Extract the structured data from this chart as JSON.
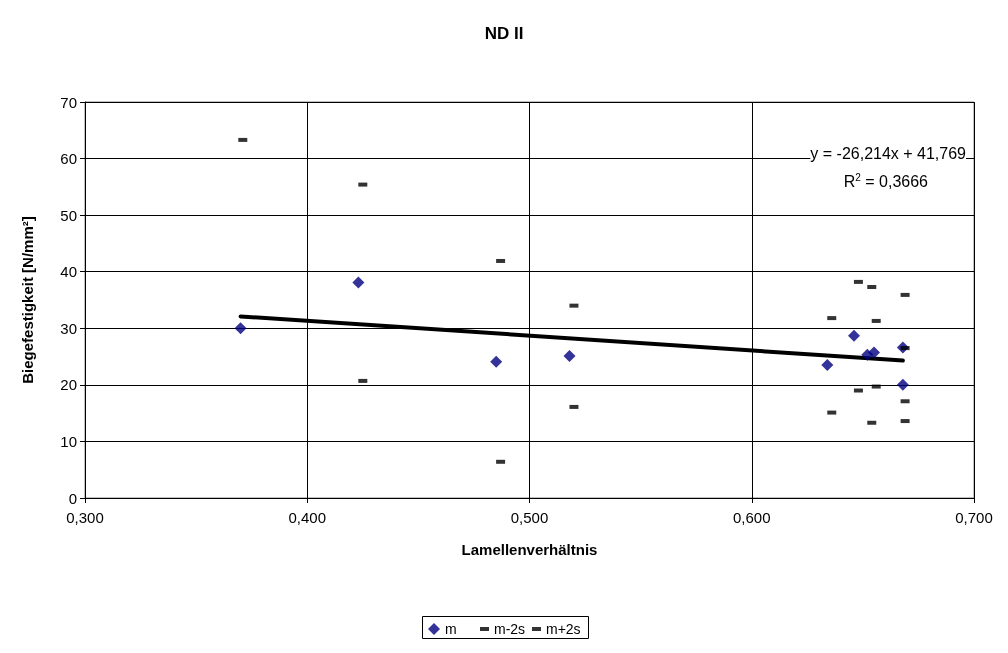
{
  "chart_data": {
    "type": "scatter",
    "title": "ND II",
    "xlabel": "Lamellenverhältnis",
    "ylabel": "Biegefestigkeit [N/mm²]",
    "annotations": [
      "y = -26,214x + 41,769",
      "R$^{2}$ = 0,3666"
    ],
    "xlim": [
      0.3,
      0.7
    ],
    "xticks": [
      {
        "value": 0.3,
        "label": "0,300"
      },
      {
        "value": 0.4,
        "label": "0,400"
      },
      {
        "value": 0.5,
        "label": "0,500"
      },
      {
        "value": 0.6,
        "label": "0,600"
      },
      {
        "value": 0.7,
        "label": "0,700"
      }
    ],
    "ylim": [
      0,
      70
    ],
    "yticks": [
      0,
      10,
      20,
      30,
      40,
      50,
      60,
      70
    ],
    "grid": true,
    "legend": "bottom",
    "series": [
      {
        "name": "m",
        "color": "#000080",
        "marker": "diamond",
        "x": [
          0.37,
          0.423,
          0.485,
          0.518,
          0.634,
          0.646,
          0.652,
          0.655,
          0.668,
          0.668
        ],
        "values": [
          30.0,
          38.1,
          24.1,
          25.1,
          23.5,
          28.7,
          25.3,
          25.7,
          26.6,
          20.0
        ]
      },
      {
        "name": "m-2s",
        "color": "#000000",
        "marker": "square",
        "x": [
          0.425,
          0.487,
          0.52,
          0.636,
          0.648,
          0.654,
          0.656,
          0.669,
          0.669
        ],
        "values": [
          20.7,
          6.4,
          16.1,
          15.1,
          19.0,
          13.3,
          19.7,
          17.1,
          13.6
        ]
      },
      {
        "name": "m+2s",
        "color": "#000000",
        "marker": "square",
        "x": [
          0.371,
          0.425,
          0.487,
          0.52,
          0.636,
          0.648,
          0.654,
          0.656,
          0.669,
          0.669
        ],
        "values": [
          63.3,
          55.4,
          41.9,
          34.0,
          31.8,
          38.2,
          37.3,
          31.3,
          35.9,
          26.5
        ]
      },
      {
        "type": "line",
        "color": "#000000",
        "marker": "none",
        "line_style": "solid",
        "x": [
          0.37,
          0.668
        ],
        "values": [
          32.1,
          24.3
        ]
      }
    ]
  }
}
